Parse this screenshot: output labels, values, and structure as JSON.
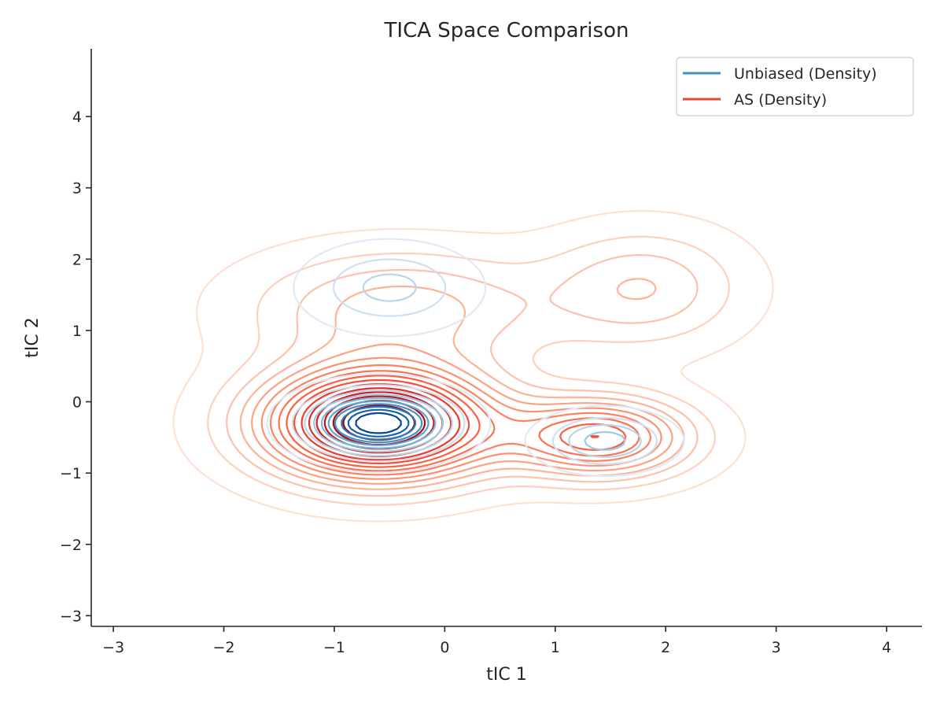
{
  "chart_data": {
    "type": "contour",
    "title": "TICA Space Comparison",
    "xlabel": "tIC 1",
    "ylabel": "tIC 2",
    "xlim": [
      -3.2,
      4.32
    ],
    "ylim": [
      -3.15,
      4.95
    ],
    "xticks": [
      -3,
      -2,
      -1,
      0,
      1,
      2,
      3,
      4
    ],
    "yticks": [
      -3,
      -2,
      -1,
      0,
      1,
      2,
      3,
      4
    ],
    "xtick_labels": [
      "−3",
      "−2",
      "−1",
      "0",
      "1",
      "2",
      "3",
      "4"
    ],
    "ytick_labels": [
      "−3",
      "−2",
      "−1",
      "0",
      "1",
      "2",
      "3",
      "4"
    ],
    "grid": false,
    "legend_position": "top-right",
    "series": [
      {
        "name": "Unbiased (Density)",
        "color": "#4292c6",
        "colormap": "Blues",
        "components": [
          {
            "weight": 0.62,
            "mu": [
              -0.6,
              -0.3
            ],
            "sigma": [
              0.38,
              0.26
            ]
          },
          {
            "weight": 0.22,
            "mu": [
              -0.5,
              1.6
            ],
            "sigma": [
              0.42,
              0.33
            ]
          },
          {
            "weight": 0.16,
            "mu": [
              1.45,
              -0.55
            ],
            "sigma": [
              0.32,
              0.22
            ]
          }
        ],
        "levels": 10
      },
      {
        "name": "AS (Density)",
        "color": "#e34a33",
        "colormap": "Reds",
        "components": [
          {
            "weight": 0.55,
            "mu": [
              -0.6,
              -0.3
            ],
            "sigma": [
              0.7,
              0.52
            ]
          },
          {
            "weight": 0.18,
            "mu": [
              -0.4,
              1.3
            ],
            "sigma": [
              0.9,
              0.55
            ]
          },
          {
            "weight": 0.17,
            "mu": [
              1.4,
              -0.5
            ],
            "sigma": [
              0.55,
              0.38
            ]
          },
          {
            "weight": 0.1,
            "mu": [
              1.8,
              1.6
            ],
            "sigma": [
              0.6,
              0.55
            ]
          }
        ],
        "levels": 16
      }
    ]
  }
}
